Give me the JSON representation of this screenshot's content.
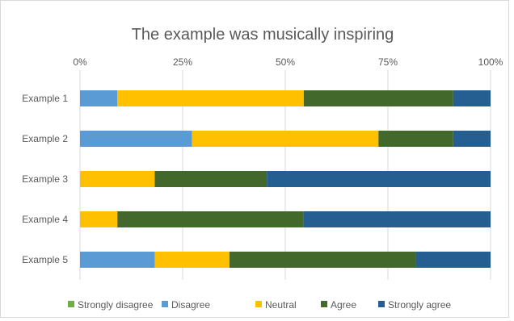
{
  "chart_data": {
    "type": "bar",
    "orientation": "horizontal",
    "stacked": "percent",
    "title": "The example was musically inspiring",
    "xlabel": "",
    "ylabel": "",
    "xlim": [
      0,
      100
    ],
    "x_ticks": [
      "0%",
      "25%",
      "50%",
      "75%",
      "100%"
    ],
    "x_axis_position": "top",
    "grid": true,
    "legend_position": "bottom",
    "categories": [
      "Example 1",
      "Example 2",
      "Example 3",
      "Example 4",
      "Example 5"
    ],
    "series": [
      {
        "name": "Strongly disagree",
        "color": "#70ad47",
        "values": [
          0,
          0,
          0,
          0,
          0
        ]
      },
      {
        "name": "Disagree",
        "color": "#5b9bd5",
        "values": [
          9.1,
          27.3,
          0,
          0,
          18.2
        ]
      },
      {
        "name": "Neutral",
        "color": "#ffc000",
        "values": [
          45.4,
          45.4,
          18.2,
          9.1,
          18.2
        ]
      },
      {
        "name": "Agree",
        "color": "#43682b",
        "values": [
          36.4,
          18.2,
          27.3,
          45.4,
          45.4
        ]
      },
      {
        "name": "Strongly agree",
        "color": "#255e91",
        "values": [
          9.1,
          9.1,
          54.5,
          45.5,
          18.2
        ]
      }
    ]
  }
}
